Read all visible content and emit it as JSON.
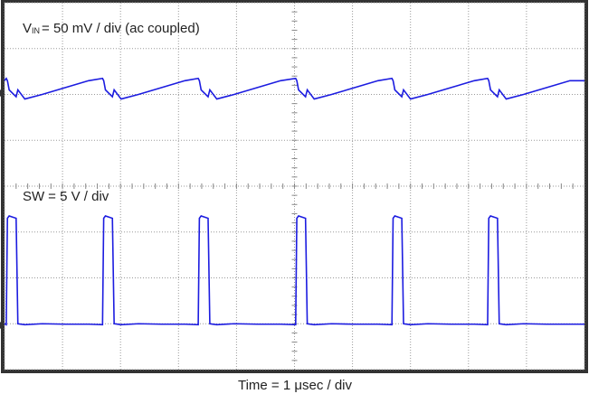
{
  "chart_data": {
    "type": "line",
    "xlabel": "Time = 1 μsec / div",
    "xlim": [
      0,
      10
    ],
    "ylim": [
      0,
      8
    ],
    "xticks": [
      0,
      1,
      2,
      3,
      4,
      5,
      6,
      7,
      8,
      9,
      10
    ],
    "yticks": [
      0,
      1,
      2,
      3,
      4,
      5,
      6,
      7,
      8
    ],
    "grid": true,
    "x": [
      0,
      0.03,
      0.05,
      0.08,
      0.2,
      0.23,
      0.35,
      0.65,
      1.05,
      1.45,
      1.69,
      1.71,
      1.74,
      1.86,
      1.89,
      2.01,
      2.31,
      2.71,
      3.11,
      3.34,
      3.36,
      3.39,
      3.51,
      3.54,
      3.66,
      3.96,
      4.36,
      4.76,
      5.02,
      5.04,
      5.07,
      5.19,
      5.22,
      5.34,
      5.64,
      6.04,
      6.44,
      6.68,
      6.7,
      6.73,
      6.85,
      6.88,
      7.0,
      7.3,
      7.7,
      8.1,
      8.33,
      8.35,
      8.38,
      8.5,
      8.53,
      8.65,
      8.95,
      9.35,
      9.75,
      10
    ],
    "series": [
      {
        "name": "V",
        "name_sub": "IN",
        "scale": "= 50 mV / div (ac coupled)",
        "color": "#1c1ce0",
        "values": [
          6.3,
          6.35,
          6.3,
          6.1,
          5.95,
          6.1,
          5.9,
          6.0,
          6.15,
          6.3,
          6.35,
          6.3,
          6.1,
          5.95,
          6.1,
          5.9,
          6.0,
          6.15,
          6.3,
          6.35,
          6.3,
          6.1,
          5.95,
          6.1,
          5.9,
          6.0,
          6.15,
          6.3,
          6.35,
          6.3,
          6.1,
          5.95,
          6.1,
          5.9,
          6.0,
          6.15,
          6.3,
          6.35,
          6.3,
          6.1,
          5.95,
          6.1,
          5.9,
          6.0,
          6.15,
          6.3,
          6.35,
          6.3,
          6.1,
          5.95,
          6.1,
          5.9,
          6.0,
          6.15,
          6.3,
          6.3
        ]
      },
      {
        "name": "SW",
        "scale": "= 5 V / div",
        "color": "#1c1ce0",
        "values": [
          1.0,
          0.98,
          3.3,
          3.35,
          3.3,
          1.0,
          0.98,
          1.0,
          0.99,
          0.99,
          0.98,
          3.3,
          3.35,
          3.3,
          1.0,
          0.98,
          1.0,
          0.99,
          0.99,
          0.98,
          3.3,
          3.35,
          3.3,
          1.0,
          0.98,
          1.0,
          0.99,
          0.99,
          0.98,
          3.3,
          3.35,
          3.3,
          1.0,
          0.98,
          1.0,
          0.99,
          0.99,
          0.98,
          3.3,
          3.35,
          3.3,
          1.0,
          0.98,
          1.0,
          0.99,
          0.99,
          0.98,
          3.3,
          3.35,
          3.3,
          1.0,
          0.98,
          1.0,
          0.99,
          0.99,
          0.99
        ]
      }
    ]
  }
}
